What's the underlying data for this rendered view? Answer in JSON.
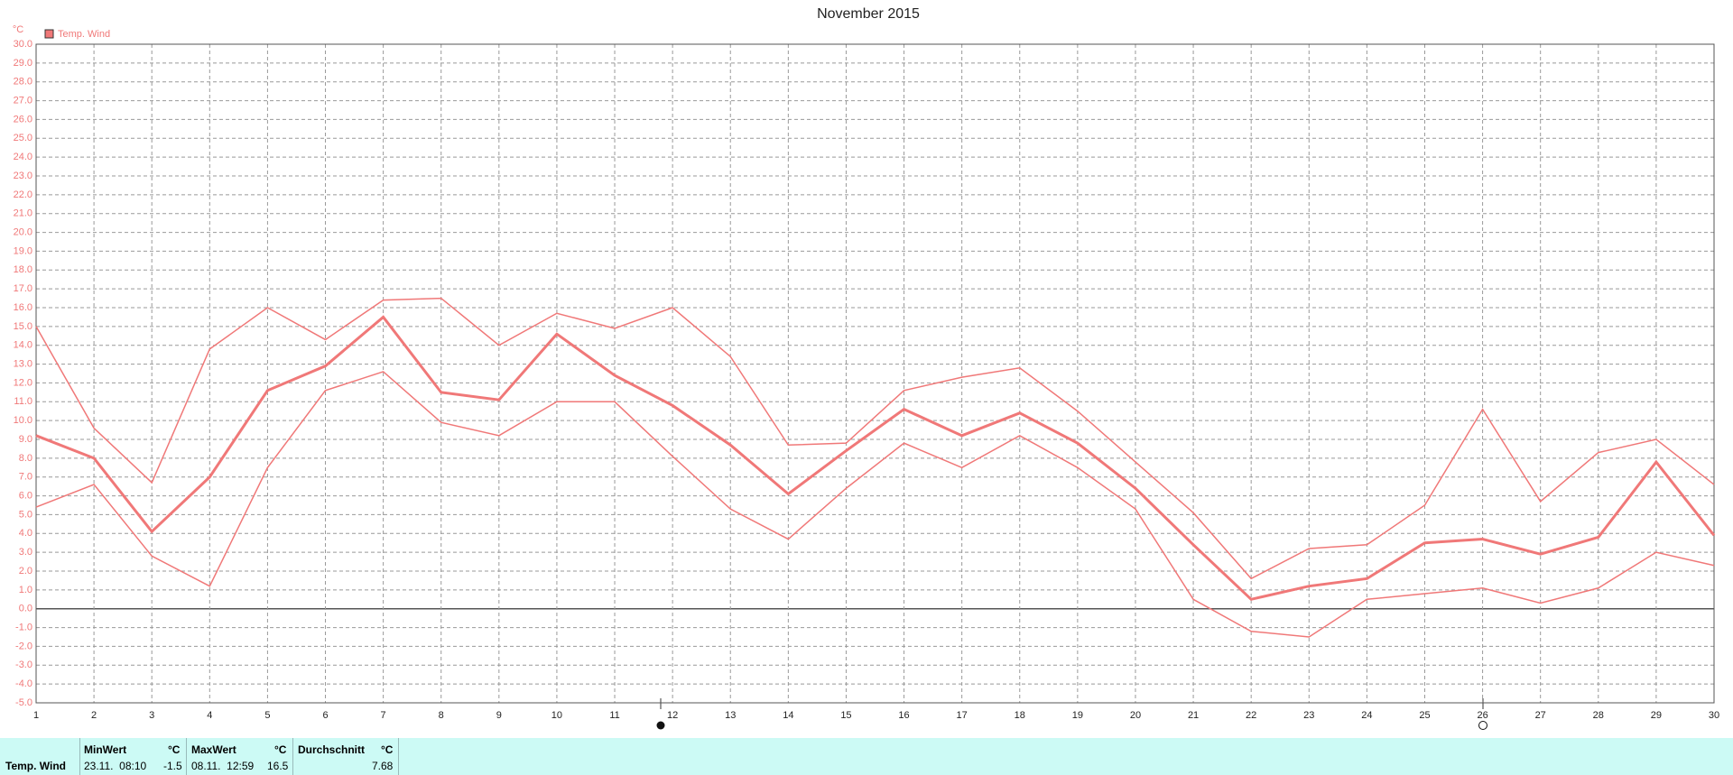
{
  "chart_data": {
    "type": "line",
    "title": "November 2015",
    "y_unit": "°C",
    "legend": "Temp. Wind",
    "legend_color": "#f07878",
    "x": [
      1,
      2,
      3,
      4,
      5,
      6,
      7,
      8,
      9,
      10,
      11,
      12,
      13,
      14,
      15,
      16,
      17,
      18,
      19,
      20,
      21,
      22,
      23,
      24,
      25,
      26,
      27,
      28,
      29,
      30
    ],
    "xlim": [
      1,
      30
    ],
    "xticks": [
      1,
      2,
      3,
      4,
      5,
      6,
      7,
      8,
      9,
      10,
      11,
      12,
      13,
      14,
      15,
      16,
      17,
      18,
      19,
      20,
      21,
      22,
      23,
      24,
      25,
      26,
      27,
      28,
      29,
      30
    ],
    "ylim": [
      -5,
      30
    ],
    "yticks": [
      {
        "value": 30,
        "label": "30.0"
      },
      {
        "value": 29,
        "label": "29.0"
      },
      {
        "value": 28,
        "label": "28.0"
      },
      {
        "value": 27,
        "label": "27.0"
      },
      {
        "value": 26,
        "label": "26.0"
      },
      {
        "value": 25,
        "label": "25.0"
      },
      {
        "value": 24,
        "label": "24.0"
      },
      {
        "value": 23,
        "label": "23.0"
      },
      {
        "value": 22,
        "label": "22.0"
      },
      {
        "value": 21,
        "label": "21.0"
      },
      {
        "value": 20,
        "label": "20.0"
      },
      {
        "value": 19,
        "label": "19.0"
      },
      {
        "value": 18,
        "label": "18.0"
      },
      {
        "value": 17,
        "label": "17.0"
      },
      {
        "value": 16,
        "label": "16.0"
      },
      {
        "value": 15,
        "label": "15.0"
      },
      {
        "value": 14,
        "label": "14.0"
      },
      {
        "value": 13,
        "label": "13.0"
      },
      {
        "value": 12,
        "label": "12.0"
      },
      {
        "value": 11,
        "label": "11.0"
      },
      {
        "value": 10,
        "label": "10.0"
      },
      {
        "value": 9,
        "label": "9.0"
      },
      {
        "value": 8,
        "label": "8.0"
      },
      {
        "value": 7,
        "label": "7.0"
      },
      {
        "value": 6,
        "label": "6.0"
      },
      {
        "value": 5,
        "label": "5.0"
      },
      {
        "value": 4,
        "label": "4.0"
      },
      {
        "value": 3,
        "label": "3.0"
      },
      {
        "value": 2,
        "label": "2.0"
      },
      {
        "value": 1,
        "label": "1.0"
      },
      {
        "value": 0,
        "label": "0.0"
      },
      {
        "value": -1,
        "label": "-1.0"
      },
      {
        "value": -2,
        "label": "-2.0"
      },
      {
        "value": -3,
        "label": "-3.0"
      },
      {
        "value": -4,
        "label": "-4.0"
      },
      {
        "value": -5,
        "label": "-5.0"
      }
    ],
    "grid": true,
    "series": [
      {
        "color": "#f07878",
        "width": 1.5,
        "values": [
          15.0,
          9.6,
          6.7,
          13.8,
          16.0,
          14.3,
          16.4,
          16.5,
          14.0,
          15.7,
          14.9,
          16.0,
          13.4,
          8.7,
          8.8,
          11.6,
          12.3,
          12.8,
          10.5,
          7.8,
          5.1,
          1.6,
          3.2,
          3.4,
          5.5,
          10.6,
          5.7,
          8.3,
          9.0,
          6.6
        ]
      },
      {
        "color": "#f07878",
        "width": 3,
        "values": [
          9.2,
          8.0,
          4.1,
          7.0,
          11.6,
          12.9,
          15.5,
          11.5,
          11.1,
          14.6,
          12.4,
          10.8,
          8.7,
          6.1,
          8.4,
          10.6,
          9.2,
          10.4,
          8.8,
          6.4,
          3.4,
          0.5,
          1.2,
          1.6,
          3.5,
          3.7,
          2.9,
          3.8,
          7.8,
          3.9
        ]
      },
      {
        "color": "#f07878",
        "width": 1.5,
        "values": [
          5.4,
          6.6,
          2.8,
          1.2,
          7.5,
          11.6,
          12.6,
          9.9,
          9.2,
          11.0,
          11.0,
          8.1,
          5.3,
          3.7,
          6.4,
          8.8,
          7.5,
          9.2,
          7.5,
          5.3,
          0.5,
          -1.2,
          -1.5,
          0.5,
          0.8,
          1.1,
          0.3,
          1.1,
          3.0,
          2.3
        ]
      }
    ]
  },
  "table": {
    "headers": [
      "MinWert",
      "°C",
      "MaxWert",
      "°C",
      "Durchschnitt",
      "°C"
    ],
    "rows": [
      [
        "Temp. Wind",
        "23.11.  08:10",
        -1.5,
        "08.11.  12:59",
        16.5,
        7.68
      ]
    ]
  }
}
